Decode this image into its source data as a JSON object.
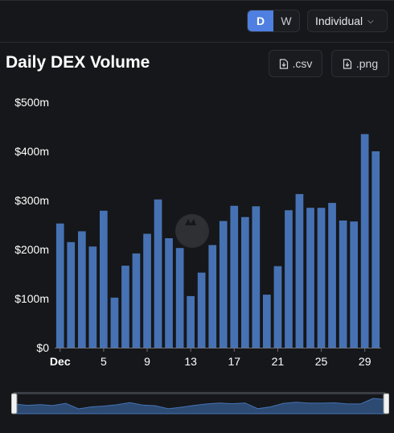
{
  "toolbar": {
    "toggle": [
      {
        "label": "D",
        "active": true
      },
      {
        "label": "W",
        "active": false
      }
    ],
    "select_value": "Individual"
  },
  "header": {
    "title": "Daily DEX Volume",
    "csv_label": ".csv",
    "png_label": ".png"
  },
  "colors": {
    "bar": "#4672b4",
    "background": "#16171a",
    "brush_fill": "#2c4a72"
  },
  "chart_data": {
    "type": "bar",
    "title": "Daily DEX Volume",
    "xlabel": "",
    "ylabel": "",
    "ylim": [
      0,
      500
    ],
    "y_unit": "$m",
    "y_ticks": [
      "$0",
      "$100m",
      "$200m",
      "$300m",
      "$400m",
      "$500m"
    ],
    "x_ticks": [
      {
        "day": 1,
        "label": "Dec"
      },
      {
        "day": 5,
        "label": "5"
      },
      {
        "day": 9,
        "label": "9"
      },
      {
        "day": 13,
        "label": "13"
      },
      {
        "day": 17,
        "label": "17"
      },
      {
        "day": 21,
        "label": "21"
      },
      {
        "day": 25,
        "label": "25"
      },
      {
        "day": 29,
        "label": "29"
      }
    ],
    "categories": [
      1,
      2,
      3,
      4,
      5,
      6,
      7,
      8,
      9,
      10,
      11,
      12,
      13,
      14,
      15,
      16,
      17,
      18,
      19,
      20,
      21,
      22,
      23,
      24,
      25,
      26,
      27,
      28,
      29,
      30
    ],
    "values": [
      253,
      215,
      237,
      206,
      279,
      102,
      167,
      192,
      232,
      302,
      223,
      203,
      105,
      153,
      209,
      258,
      289,
      266,
      288,
      108,
      166,
      280,
      313,
      285,
      285,
      295,
      259,
      257,
      435,
      400
    ],
    "grid": false,
    "legend": "none"
  }
}
